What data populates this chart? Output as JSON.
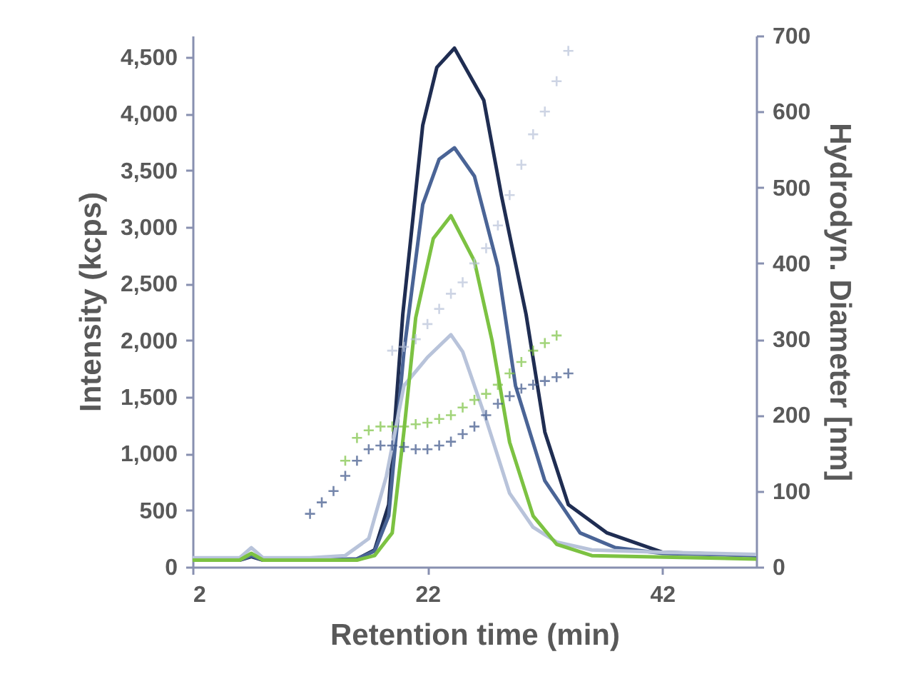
{
  "chart_data": {
    "type": "line",
    "xlabel": "Retention time (min)",
    "ylabel": "Intensity (kcps)",
    "y2label": "Hydrodyn. Diameter [nm]",
    "xlim": [
      2,
      50
    ],
    "xticks": [
      2,
      22,
      42
    ],
    "ylim": [
      0,
      4690
    ],
    "yticks": [
      0,
      500,
      {
        "value": 1000,
        "label": "1,000"
      },
      {
        "value": 1500,
        "label": "1,500"
      },
      {
        "value": 2000,
        "label": "2,000"
      },
      {
        "value": 2500,
        "label": "2,500"
      },
      {
        "value": 3000,
        "label": "3,000"
      },
      {
        "value": 3500,
        "label": "3,500"
      },
      {
        "value": 4000,
        "label": "4,000"
      },
      {
        "value": 4500,
        "label": "4,500"
      }
    ],
    "y2lim": [
      0,
      700
    ],
    "y2ticks": [
      0,
      100,
      200,
      300,
      400,
      500,
      600,
      700
    ],
    "grid": false,
    "line_style": "solid",
    "series": [
      {
        "color": "#1f2d52",
        "x": [
          2,
          6,
          7,
          8,
          12,
          16,
          17.5,
          18.7,
          19.9,
          21.6,
          22.8,
          24.3,
          26.8,
          28.3,
          30.4,
          32,
          34,
          37.3,
          42,
          50
        ],
        "values": [
          60,
          60,
          90,
          60,
          60,
          70,
          150,
          550,
          2230,
          3900,
          4410,
          4580,
          4120,
          3280,
          2230,
          1190,
          550,
          300,
          130,
          100
        ]
      },
      {
        "color": "#4a6496",
        "x": [
          2,
          6,
          7,
          8,
          12,
          16,
          17.5,
          18.7,
          20,
          21.6,
          23,
          24.3,
          26,
          28,
          29.5,
          32,
          35,
          38,
          42,
          50
        ],
        "values": [
          60,
          60,
          100,
          60,
          60,
          70,
          140,
          450,
          1900,
          3200,
          3600,
          3700,
          3450,
          2650,
          1600,
          760,
          300,
          170,
          120,
          100
        ]
      },
      {
        "color": "#b8c3da",
        "x": [
          2,
          6,
          7,
          8,
          12,
          15,
          17,
          18.5,
          20,
          22,
          24,
          25,
          27,
          29,
          31,
          33,
          36,
          42,
          50
        ],
        "values": [
          80,
          80,
          170,
          80,
          80,
          100,
          250,
          800,
          1600,
          1850,
          2050,
          1900,
          1300,
          650,
          350,
          220,
          150,
          130,
          110
        ]
      },
      {
        "color": "#7cc242",
        "x": [
          2,
          6,
          7,
          8,
          12,
          16,
          17.5,
          19,
          20,
          21,
          22.5,
          24,
          26,
          27.5,
          29,
          31,
          33,
          36,
          50
        ],
        "values": [
          60,
          60,
          120,
          60,
          60,
          60,
          100,
          300,
          1200,
          2200,
          2900,
          3100,
          2700,
          2000,
          1100,
          450,
          200,
          100,
          70
        ]
      },
      {
        "type": "scatter",
        "axis": "y2",
        "marker": "cross",
        "color": "#b8c3da",
        "x": [
          19,
          20,
          21,
          22,
          23,
          24,
          25,
          26,
          27,
          28,
          29,
          30,
          31,
          32,
          33,
          34
        ],
        "values": [
          285,
          290,
          300,
          320,
          340,
          360,
          375,
          400,
          420,
          450,
          490,
          530,
          570,
          600,
          640,
          680
        ]
      },
      {
        "type": "scatter",
        "axis": "y2",
        "marker": "cross",
        "color": "#7cc242",
        "x": [
          15,
          16,
          17,
          18,
          19,
          20,
          21,
          22,
          23,
          24,
          25,
          26,
          27,
          28,
          29,
          30,
          31,
          32,
          33
        ],
        "values": [
          140,
          170,
          180,
          185,
          185,
          185,
          188,
          190,
          195,
          200,
          210,
          220,
          228,
          240,
          255,
          270,
          285,
          295,
          305
        ]
      },
      {
        "type": "scatter",
        "axis": "y2",
        "marker": "cross",
        "color": "#3b5488",
        "x": [
          12,
          13,
          14,
          15,
          16,
          17,
          18,
          19,
          20,
          21,
          22,
          23,
          24,
          25,
          26,
          27,
          28,
          29,
          30,
          31,
          32,
          33,
          34
        ],
        "values": [
          70,
          85,
          100,
          120,
          140,
          155,
          160,
          160,
          158,
          155,
          155,
          160,
          165,
          175,
          185,
          200,
          215,
          225,
          235,
          240,
          245,
          250,
          255
        ]
      }
    ]
  }
}
